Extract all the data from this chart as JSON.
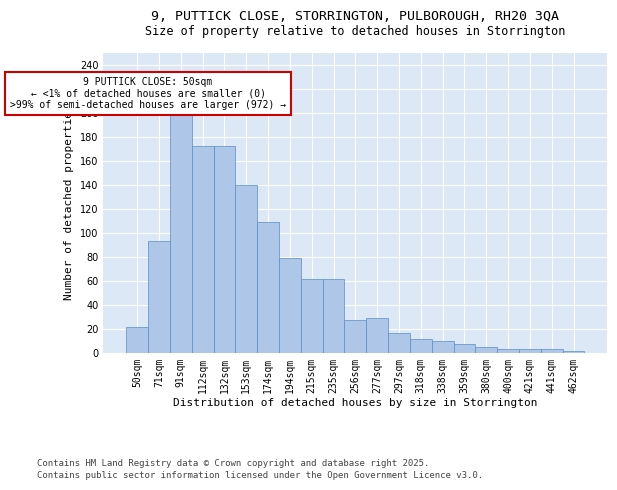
{
  "title_line1": "9, PUTTICK CLOSE, STORRINGTON, PULBOROUGH, RH20 3QA",
  "title_line2": "Size of property relative to detached houses in Storrington",
  "xlabel": "Distribution of detached houses by size in Storrington",
  "ylabel": "Number of detached properties",
  "categories": [
    "50sqm",
    "71sqm",
    "91sqm",
    "112sqm",
    "132sqm",
    "153sqm",
    "174sqm",
    "194sqm",
    "215sqm",
    "235sqm",
    "256sqm",
    "277sqm",
    "297sqm",
    "318sqm",
    "338sqm",
    "359sqm",
    "380sqm",
    "400sqm",
    "421sqm",
    "441sqm",
    "462sqm"
  ],
  "values": [
    21,
    93,
    201,
    172,
    172,
    140,
    109,
    79,
    61,
    61,
    27,
    29,
    16,
    11,
    10,
    7,
    5,
    3,
    3,
    3,
    1
  ],
  "bar_color": "#aec6e8",
  "bar_edge_color": "#5b8ec4",
  "annotation_text": "9 PUTTICK CLOSE: 50sqm\n← <1% of detached houses are smaller (0)\n>99% of semi-detached houses are larger (972) →",
  "annotation_box_color": "#ffffff",
  "annotation_box_edge": "#cc0000",
  "ylim": [
    0,
    250
  ],
  "yticks": [
    0,
    20,
    40,
    60,
    80,
    100,
    120,
    140,
    160,
    180,
    200,
    220,
    240
  ],
  "background_color": "#dce8f5",
  "grid_color": "#ffffff",
  "footer_line1": "Contains HM Land Registry data © Crown copyright and database right 2025.",
  "footer_line2": "Contains public sector information licensed under the Open Government Licence v3.0.",
  "title_fontsize": 9.5,
  "subtitle_fontsize": 8.5,
  "axis_label_fontsize": 8,
  "tick_fontsize": 7,
  "footer_fontsize": 6.5,
  "annotation_fontsize": 7
}
